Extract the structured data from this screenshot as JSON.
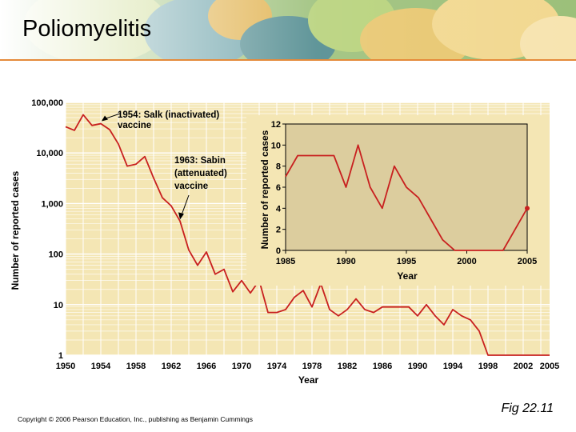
{
  "slide": {
    "title": "Poliomyelitis",
    "figure_label": "Fig 22.11",
    "copyright": "Copyright © 2006 Pearson Education, Inc., publishing as Benjamin Cummings"
  },
  "colors": {
    "plot_bg": "#f4e6b4",
    "inset_bg": "#dccd9e",
    "line": "#c8201f",
    "grid": "#ffffff",
    "title_rule": "#e58a3a"
  },
  "chart_data": [
    {
      "type": "line",
      "scale": "log",
      "x": [
        1950,
        1951,
        1952,
        1953,
        1954,
        1955,
        1956,
        1957,
        1958,
        1959,
        1960,
        1961,
        1962,
        1963,
        1964,
        1965,
        1966,
        1967,
        1968,
        1969,
        1970,
        1971,
        1972,
        1973,
        1974,
        1975,
        1976,
        1977,
        1978,
        1979,
        1980,
        1981,
        1982,
        1983,
        1984,
        1985,
        1986,
        1987,
        1988,
        1989,
        1990,
        1991,
        1992,
        1993,
        1994,
        1995,
        1996,
        1997,
        1998,
        1999,
        2000,
        2001,
        2002,
        2003,
        2004,
        2005
      ],
      "y": [
        33000,
        28000,
        57000,
        35000,
        38000,
        29000,
        15000,
        5500,
        6000,
        8500,
        3200,
        1300,
        900,
        450,
        120,
        60,
        110,
        40,
        50,
        18,
        30,
        17,
        30,
        7,
        7,
        8,
        14,
        19,
        9,
        26,
        8,
        6,
        8,
        13,
        8,
        7,
        9,
        9,
        9,
        9,
        6,
        10,
        6,
        4,
        8,
        6,
        5,
        3,
        1,
        1,
        1,
        1,
        1,
        1,
        1,
        1
      ],
      "xticks": [
        "1950",
        "1954",
        "1958",
        "1962",
        "1966",
        "1970",
        "1974",
        "1978",
        "1982",
        "1986",
        "1990",
        "1994",
        "1998",
        "2002",
        "2005"
      ],
      "yticks": [
        "1",
        "10",
        "100",
        "1,000",
        "10,000",
        "100,000"
      ],
      "xlim": [
        1950,
        2005
      ],
      "ylim": [
        1,
        100000
      ],
      "xlabel": "Year",
      "ylabel": "Number of reported cases",
      "grid": true,
      "annotations": [
        {
          "lines": [
            "1954: Salk (inactivated)",
            "vaccine"
          ],
          "x": 1954,
          "y": 38000
        },
        {
          "lines": [
            "1963: Sabin",
            "(attenuated)",
            "vaccine"
          ],
          "x": 1963,
          "y": 450
        }
      ]
    },
    {
      "type": "line",
      "x": [
        1985,
        1986,
        1987,
        1988,
        1989,
        1990,
        1991,
        1992,
        1993,
        1994,
        1995,
        1996,
        1997,
        1998,
        1999,
        2000,
        2001,
        2002,
        2003,
        2004,
        2005
      ],
      "y": [
        7,
        9,
        9,
        9,
        9,
        6,
        10,
        6,
        4,
        8,
        6,
        5,
        3,
        1,
        0,
        0,
        0,
        0,
        0,
        2,
        4
      ],
      "xticks": [
        "1985",
        "1990",
        "1995",
        "2000",
        "2005"
      ],
      "yticks": [
        "0",
        "2",
        "4",
        "6",
        "8",
        "10",
        "12"
      ],
      "xlim": [
        1985,
        2005
      ],
      "ylim": [
        0,
        12
      ],
      "xlabel": "Year",
      "ylabel": "Number of reported cases",
      "grid": false,
      "highlight_last_point": true
    }
  ]
}
